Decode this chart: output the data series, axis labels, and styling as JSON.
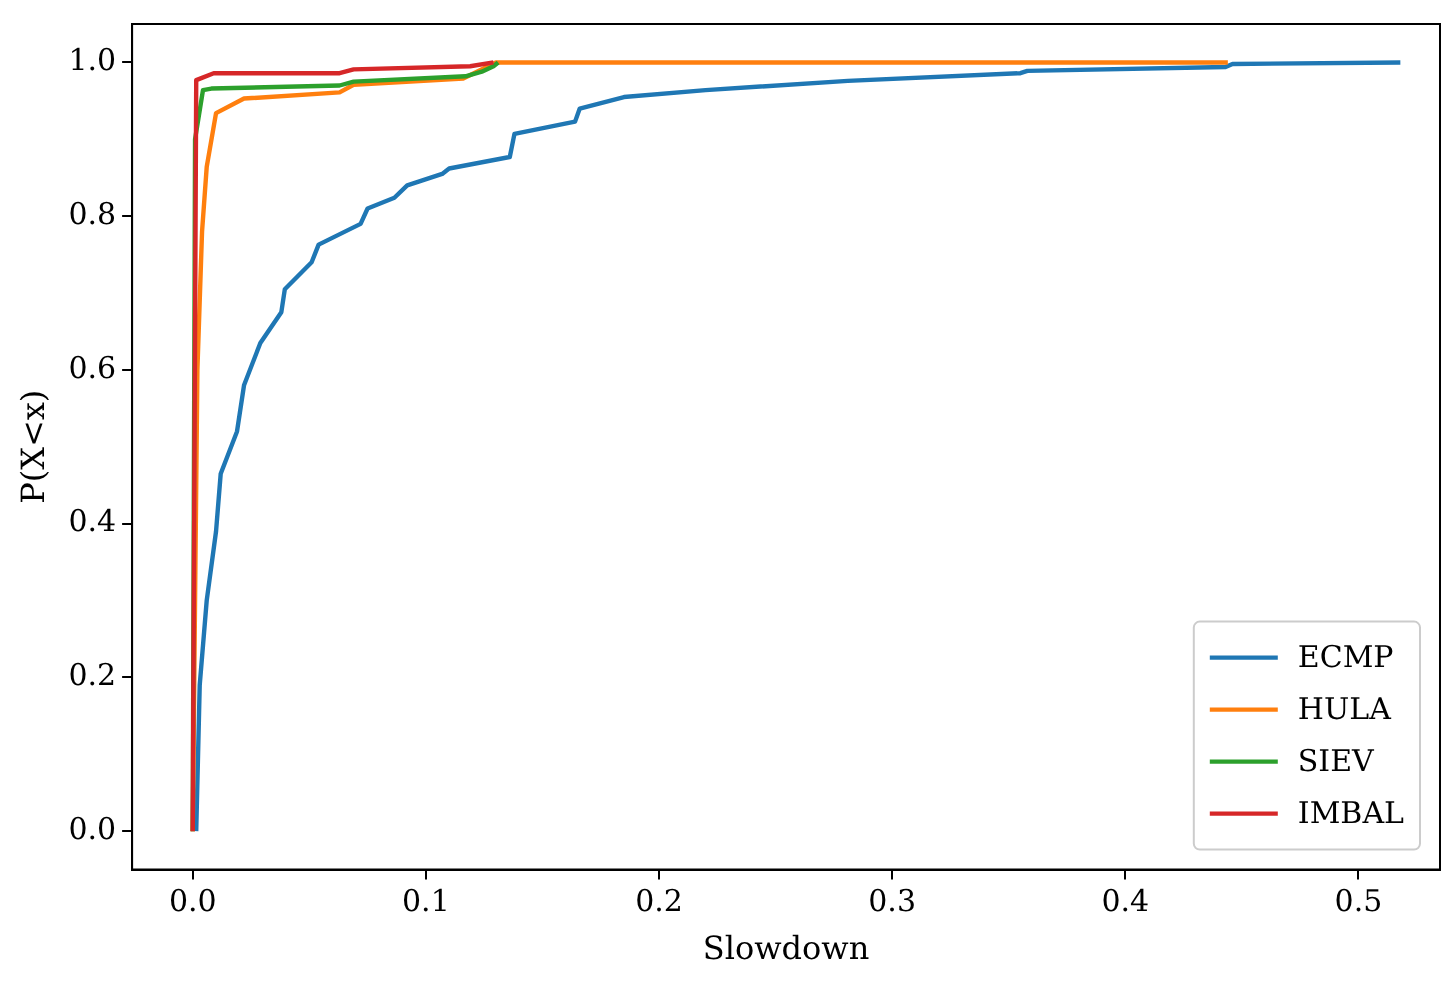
{
  "chart_data": {
    "type": "line",
    "xlabel": "Slowdown",
    "ylabel": "P(X<x)",
    "legend": "bottom right",
    "grid": false,
    "marker": "none",
    "line_style": "solid",
    "xlim": [
      -0.026,
      0.535
    ],
    "ylim": [
      -0.05,
      1.05
    ],
    "xticks": [
      {
        "value": 0,
        "label": "0.0"
      },
      {
        "value": 0.1,
        "label": "0.1"
      },
      {
        "value": 0.2,
        "label": "0.2"
      },
      {
        "value": 0.3,
        "label": "0.3"
      },
      {
        "value": 0.4,
        "label": "0.4"
      },
      {
        "value": 0.5,
        "label": "0.5"
      }
    ],
    "yticks": [
      {
        "value": 0,
        "label": "0.0"
      },
      {
        "value": 0.2,
        "label": "0.2"
      },
      {
        "value": 0.4,
        "label": "0.4"
      },
      {
        "value": 0.6,
        "label": "0.6"
      },
      {
        "value": 0.8,
        "label": "0.8"
      },
      {
        "value": 1,
        "label": "1.0"
      }
    ],
    "series": [
      {
        "name": "ECMP",
        "color": "#1f77b4",
        "x": [
          0.0015,
          0.003,
          0.006,
          0.01,
          0.012,
          0.019,
          0.0205,
          0.022,
          0.029,
          0.038,
          0.0395,
          0.051,
          0.054,
          0.072,
          0.075,
          0.0865,
          0.092,
          0.107,
          0.11,
          0.136,
          0.138,
          0.164,
          0.166,
          0.185,
          0.22,
          0.281,
          0.355,
          0.358,
          0.443,
          0.446,
          0.518
        ],
        "values": [
          0,
          0.19,
          0.3,
          0.39,
          0.465,
          0.52,
          0.55,
          0.58,
          0.635,
          0.675,
          0.705,
          0.74,
          0.763,
          0.79,
          0.81,
          0.824,
          0.84,
          0.855,
          0.862,
          0.877,
          0.907,
          0.923,
          0.94,
          0.955,
          0.964,
          0.976,
          0.986,
          0.989,
          0.994,
          0.998,
          1
        ]
      },
      {
        "name": "HULA",
        "color": "#ff7f0e",
        "x": [
          0,
          0.002,
          0.004,
          0.006,
          0.01,
          0.022,
          0.063,
          0.069,
          0.116,
          0.13,
          0.444
        ],
        "values": [
          0,
          0.6,
          0.78,
          0.864,
          0.934,
          0.953,
          0.961,
          0.971,
          0.979,
          1,
          1
        ]
      },
      {
        "name": "SIEV",
        "color": "#2ca02c",
        "x": [
          0,
          0.001,
          0.0044,
          0.008,
          0.063,
          0.069,
          0.117,
          0.124,
          0.129,
          0.131
        ],
        "values": [
          0,
          0.9,
          0.964,
          0.966,
          0.97,
          0.975,
          0.982,
          0.988,
          0.995,
          1
        ]
      },
      {
        "name": "IMBAL",
        "color": "#d62728",
        "x": [
          0,
          0.0015,
          0.009,
          0.063,
          0.069,
          0.119,
          0.129
        ],
        "values": [
          0,
          0.977,
          0.986,
          0.986,
          0.991,
          0.995,
          1
        ]
      }
    ]
  }
}
